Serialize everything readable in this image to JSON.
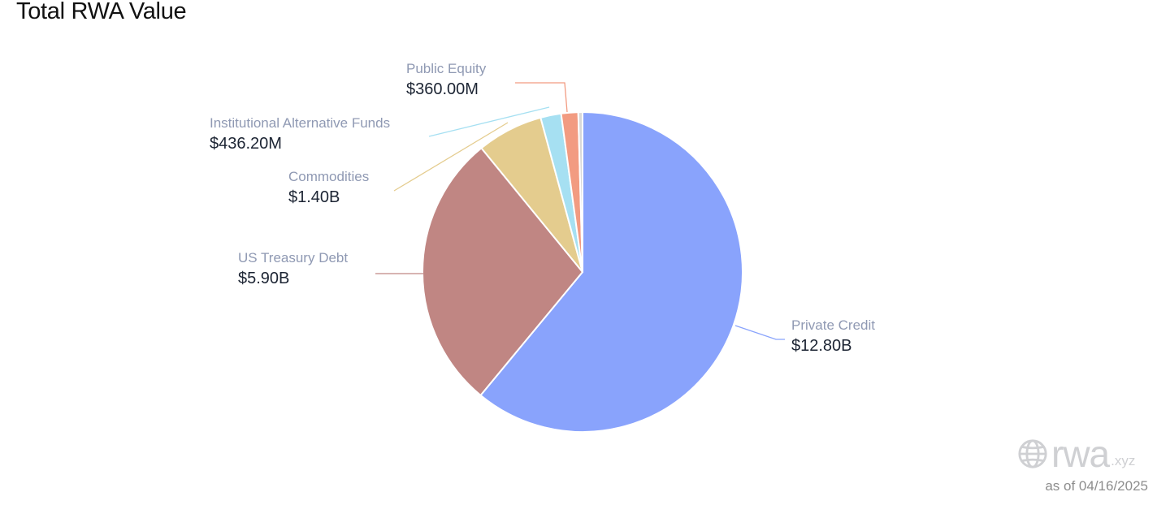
{
  "page": {
    "title": "Total RWA Value"
  },
  "branding": {
    "logo_text": "rwa",
    "logo_tld": ".xyz",
    "as_of": "as of 04/16/2025",
    "logo_color": "#cfd0d3"
  },
  "chart_data": {
    "type": "pie",
    "title": "Total RWA Value",
    "unit": "USD",
    "slices": [
      {
        "name": "Private Credit",
        "value": 12.8,
        "label": "$12.80B",
        "color": "#89a3fc"
      },
      {
        "name": "US Treasury Debt",
        "value": 5.9,
        "label": "$5.90B",
        "color": "#c08683"
      },
      {
        "name": "Commodities",
        "value": 1.4,
        "label": "$1.40B",
        "color": "#e4cc8e"
      },
      {
        "name": "Institutional Alternative Funds",
        "value": 0.4362,
        "label": "$436.20M",
        "color": "#a6e0f2"
      },
      {
        "name": "Public Equity",
        "value": 0.36,
        "label": "$360.00M",
        "color": "#f29b81"
      },
      {
        "name": "",
        "value": 0.09,
        "label": "",
        "color": "#d8d8d8"
      }
    ]
  }
}
